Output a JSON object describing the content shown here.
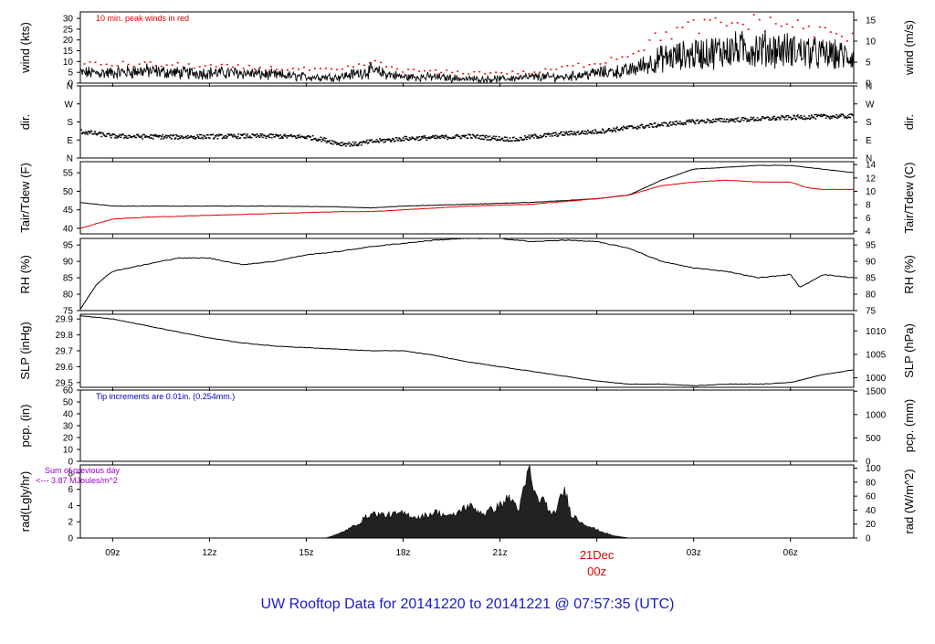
{
  "footer_title": "UW Rooftop Data for 20141220  to  20141221 @ 07:57:35  (UTC)",
  "colors": {
    "black": "#000000",
    "red": "#e00000",
    "blue": "#0000cc",
    "purple": "#9900cc",
    "title_blue": "#1a1acc"
  },
  "x_axis": {
    "ticks": [
      {
        "label": "09z",
        "hour": 9
      },
      {
        "label": "12z",
        "hour": 12
      },
      {
        "label": "15z",
        "hour": 15
      },
      {
        "label": "18z",
        "hour": 18
      },
      {
        "label": "21z",
        "hour": 21
      },
      {
        "label": "03z",
        "hour": 27
      },
      {
        "label": "06z",
        "hour": 30
      }
    ],
    "day_label": "21Dec",
    "day_sublabel": "00z",
    "day_hour": 24,
    "range_hours": [
      8,
      31.96
    ]
  },
  "chart_data": [
    {
      "type": "line",
      "ylabel": "wind (kts)",
      "ylabel_right": "wind (m/s)",
      "annotation": "10 min. peak winds in red",
      "ylim": [
        0,
        33
      ],
      "yticks": [
        0,
        5,
        10,
        15,
        20,
        25,
        30
      ],
      "yticks_right": [
        {
          "label": "0",
          "v": 0
        },
        {
          "label": "5",
          "v": 9.72
        },
        {
          "label": "10",
          "v": 19.44
        },
        {
          "label": "15",
          "v": 29.16
        }
      ],
      "series": [
        {
          "points": [
            [
              8,
              5
            ],
            [
              9,
              5
            ],
            [
              10,
              6
            ],
            [
              11,
              5
            ],
            [
              12,
              5
            ],
            [
              13,
              5
            ],
            [
              14,
              4
            ],
            [
              15,
              3
            ],
            [
              16,
              3
            ],
            [
              17,
              6
            ],
            [
              18,
              3
            ],
            [
              19,
              3
            ],
            [
              20,
              2
            ],
            [
              21,
              2
            ],
            [
              22,
              3
            ],
            [
              23,
              3
            ],
            [
              24,
              5
            ],
            [
              25,
              6
            ],
            [
              26,
              12
            ],
            [
              27,
              14
            ],
            [
              28,
              16
            ],
            [
              29,
              17
            ],
            [
              30,
              16
            ],
            [
              31,
              14
            ],
            [
              31.96,
              13
            ]
          ]
        },
        {
          "points": [
            [
              8,
              9
            ],
            [
              10,
              9
            ],
            [
              12,
              8
            ],
            [
              14,
              7
            ],
            [
              16,
              6
            ],
            [
              17,
              10
            ],
            [
              18,
              6
            ],
            [
              20,
              5
            ],
            [
              22,
              5
            ],
            [
              24,
              10
            ],
            [
              25,
              14
            ],
            [
              26,
              23
            ],
            [
              27,
              27
            ],
            [
              28,
              28
            ],
            [
              29,
              29
            ],
            [
              30,
              28
            ],
            [
              31,
              24
            ],
            [
              31.96,
              21
            ]
          ]
        }
      ]
    },
    {
      "type": "scatter",
      "ylabel": "dir.",
      "ylabel_right": "dir.",
      "ylim": [
        0,
        360
      ],
      "yticks": [
        {
          "label": "N",
          "v": 0
        },
        {
          "label": "E",
          "v": 90
        },
        {
          "label": "S",
          "v": 180
        },
        {
          "label": "W",
          "v": 270
        },
        {
          "label": "N",
          "v": 360
        }
      ],
      "series": [
        {
          "points": [
            [
              8,
              135
            ],
            [
              9,
              112
            ],
            [
              10,
              110
            ],
            [
              11,
              108
            ],
            [
              12,
              110
            ],
            [
              13,
              112
            ],
            [
              14,
              112
            ],
            [
              15,
              108
            ],
            [
              15.5,
              95
            ],
            [
              16,
              75
            ],
            [
              16.5,
              72
            ],
            [
              17,
              85
            ],
            [
              18,
              100
            ],
            [
              19,
              105
            ],
            [
              20,
              112
            ],
            [
              21,
              100
            ],
            [
              21.5,
              95
            ],
            [
              22,
              110
            ],
            [
              23,
              125
            ],
            [
              24,
              135
            ],
            [
              25,
              155
            ],
            [
              26,
              170
            ],
            [
              27,
              185
            ],
            [
              28,
              192
            ],
            [
              29,
              198
            ],
            [
              30,
              205
            ],
            [
              31,
              210
            ],
            [
              31.96,
              212
            ]
          ]
        }
      ]
    },
    {
      "type": "line",
      "ylabel": "Tair/Tdew (F)",
      "ylabel_right": "Tair/Tdew (C)",
      "ylim": [
        38.5,
        58
      ],
      "yticks": [
        40,
        45,
        50,
        55
      ],
      "yticks_right": [
        {
          "label": "4",
          "v": 39.2
        },
        {
          "label": "6",
          "v": 42.8
        },
        {
          "label": "8",
          "v": 46.4
        },
        {
          "label": "10",
          "v": 50
        },
        {
          "label": "12",
          "v": 53.6
        },
        {
          "label": "14",
          "v": 57.2
        }
      ],
      "series": [
        {
          "points": [
            [
              8,
              47
            ],
            [
              9,
              46
            ],
            [
              10,
              46
            ],
            [
              12,
              46
            ],
            [
              14,
              46
            ],
            [
              16,
              45.8
            ],
            [
              17,
              45.5
            ],
            [
              18,
              46
            ],
            [
              20,
              46.5
            ],
            [
              22,
              47
            ],
            [
              24,
              48
            ],
            [
              25,
              49
            ],
            [
              26,
              53
            ],
            [
              27,
              56
            ],
            [
              28,
              56.5
            ],
            [
              29,
              57
            ],
            [
              30,
              57
            ],
            [
              31,
              56
            ],
            [
              31.96,
              55
            ]
          ]
        },
        {
          "points": [
            [
              8,
              40
            ],
            [
              9,
              42.5
            ],
            [
              10,
              43
            ],
            [
              12,
              43.5
            ],
            [
              14,
              44
            ],
            [
              16,
              44.5
            ],
            [
              17,
              44.5
            ],
            [
              18,
              45
            ],
            [
              20,
              46
            ],
            [
              22,
              46.5
            ],
            [
              24,
              48
            ],
            [
              25,
              49
            ],
            [
              26,
              51.5
            ],
            [
              27,
              52.5
            ],
            [
              28,
              53
            ],
            [
              29,
              52.5
            ],
            [
              30,
              52.5
            ],
            [
              30.5,
              51
            ],
            [
              31,
              50.5
            ],
            [
              31.96,
              50.5
            ]
          ]
        }
      ]
    },
    {
      "type": "line",
      "ylabel": "RH (%)",
      "ylabel_right": "RH (%)",
      "ylim": [
        75,
        97
      ],
      "yticks": [
        75,
        80,
        85,
        90,
        95
      ],
      "yticks_right": [
        {
          "label": "75",
          "v": 75
        },
        {
          "label": "80",
          "v": 80
        },
        {
          "label": "85",
          "v": 85
        },
        {
          "label": "90",
          "v": 90
        },
        {
          "label": "95",
          "v": 95
        }
      ],
      "series": [
        {
          "points": [
            [
              8,
              75.5
            ],
            [
              8.5,
              83
            ],
            [
              9,
              87
            ],
            [
              10,
              89
            ],
            [
              11,
              91
            ],
            [
              12,
              91
            ],
            [
              13,
              89
            ],
            [
              14,
              90
            ],
            [
              15,
              92
            ],
            [
              16,
              93
            ],
            [
              17,
              94.5
            ],
            [
              18,
              95.5
            ],
            [
              19,
              96.5
            ],
            [
              20,
              97
            ],
            [
              21,
              97
            ],
            [
              22,
              96
            ],
            [
              23,
              96.5
            ],
            [
              24,
              96
            ],
            [
              25,
              94
            ],
            [
              26,
              90
            ],
            [
              27,
              88
            ],
            [
              28,
              87
            ],
            [
              29,
              85
            ],
            [
              30,
              86
            ],
            [
              30.3,
              82
            ],
            [
              31,
              86
            ],
            [
              31.96,
              85
            ]
          ]
        }
      ]
    },
    {
      "type": "line",
      "ylabel": "SLP (inHg)",
      "ylabel_right": "SLP (hPa)",
      "ylim": [
        29.47,
        29.93
      ],
      "yticks": [
        29.5,
        29.6,
        29.7,
        29.8,
        29.9
      ],
      "yticks_right": [
        {
          "label": "1000",
          "v": 29.53
        },
        {
          "label": "1005",
          "v": 29.677
        },
        {
          "label": "1010",
          "v": 29.825
        }
      ],
      "series": [
        {
          "points": [
            [
              8,
              29.92
            ],
            [
              9,
              29.9
            ],
            [
              10,
              29.86
            ],
            [
              11,
              29.82
            ],
            [
              12,
              29.78
            ],
            [
              13,
              29.75
            ],
            [
              14,
              29.73
            ],
            [
              15,
              29.72
            ],
            [
              16,
              29.71
            ],
            [
              17,
              29.7
            ],
            [
              18,
              29.7
            ],
            [
              19,
              29.67
            ],
            [
              20,
              29.63
            ],
            [
              21,
              29.6
            ],
            [
              22,
              29.57
            ],
            [
              23,
              29.54
            ],
            [
              24,
              29.51
            ],
            [
              25,
              29.49
            ],
            [
              26,
              29.49
            ],
            [
              27,
              29.48
            ],
            [
              28,
              29.49
            ],
            [
              29,
              29.49
            ],
            [
              30,
              29.5
            ],
            [
              31,
              29.55
            ],
            [
              31.96,
              29.58
            ]
          ]
        }
      ]
    },
    {
      "type": "bar",
      "ylabel": "pcp. (in)",
      "ylabel_right": "pcp. (mm)",
      "annotation": "Tip increments are 0.01in. (0.254mm.)",
      "ylim": [
        0,
        60
      ],
      "yticks": [
        0,
        10,
        20,
        30,
        40,
        50,
        60
      ],
      "yticks_right": [
        {
          "label": "0",
          "v": 0
        },
        {
          "label": "500",
          "v": 19.68
        },
        {
          "label": "1000",
          "v": 39.37
        },
        {
          "label": "1500",
          "v": 59.05
        }
      ],
      "series": []
    },
    {
      "type": "area",
      "ylabel": "rad(Lgly/hr)",
      "ylabel_right": "rad (W/m^2)",
      "annotation": "Sum of previous day",
      "annotation2": "<--- 3.87 MJoules/m^2",
      "ylim": [
        0,
        9
      ],
      "yticks": [
        0,
        2,
        4,
        6,
        8
      ],
      "yticks_right": [
        {
          "label": "0",
          "v": 0
        },
        {
          "label": "20",
          "v": 1.72
        },
        {
          "label": "40",
          "v": 3.44
        },
        {
          "label": "60",
          "v": 5.16
        },
        {
          "label": "80",
          "v": 6.88
        },
        {
          "label": "100",
          "v": 8.6
        }
      ],
      "series": [
        {
          "points": [
            [
              15.6,
              0
            ],
            [
              16,
              0.5
            ],
            [
              16.5,
              1.5
            ],
            [
              17,
              3
            ],
            [
              17.5,
              2.8
            ],
            [
              18,
              3
            ],
            [
              18.5,
              2.5
            ],
            [
              19,
              3.2
            ],
            [
              19.5,
              2.6
            ],
            [
              20,
              4
            ],
            [
              20.5,
              3
            ],
            [
              21,
              4
            ],
            [
              21.3,
              5
            ],
            [
              21.6,
              3.5
            ],
            [
              21.9,
              8.5
            ],
            [
              22.1,
              5
            ],
            [
              22.4,
              4.5
            ],
            [
              22.6,
              2.5
            ],
            [
              22.8,
              4
            ],
            [
              23,
              6
            ],
            [
              23.2,
              3
            ],
            [
              23.5,
              2
            ],
            [
              24,
              1
            ],
            [
              24.5,
              0.3
            ],
            [
              25,
              0
            ]
          ]
        }
      ]
    }
  ]
}
